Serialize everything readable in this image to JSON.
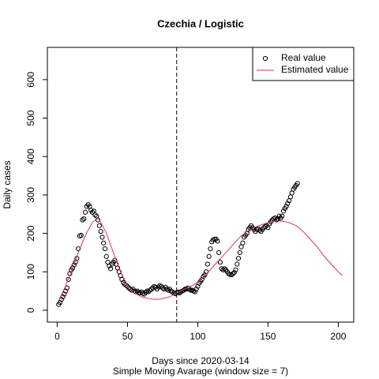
{
  "chart_data": {
    "type": "scatter_line",
    "title": "Czechia / Logistic",
    "x_label": "Days since 2020-03-14",
    "subtitle": "Simple Moving Avarage (window size = 7)",
    "y_label": "Daily cases",
    "xlim": [
      -7,
      211
    ],
    "ylim": [
      -31,
      684
    ],
    "xticks": [
      0,
      50,
      100,
      150,
      200
    ],
    "yticks": [
      0,
      100,
      200,
      300,
      400,
      500,
      600
    ],
    "vline": 85,
    "legend": "top-right",
    "series": [
      {
        "name": "Real value",
        "color": "#000000",
        "mode": "points",
        "x": [
          1,
          2,
          3,
          4,
          5,
          6,
          7,
          8,
          9,
          10,
          11,
          12,
          13,
          14,
          15,
          16,
          17,
          18,
          19,
          20,
          21,
          22,
          23,
          24,
          25,
          26,
          27,
          28,
          29,
          30,
          31,
          32,
          33,
          34,
          35,
          36,
          37,
          38,
          39,
          40,
          41,
          42,
          43,
          44,
          45,
          46,
          47,
          48,
          49,
          50,
          51,
          52,
          53,
          54,
          55,
          56,
          57,
          58,
          59,
          60,
          61,
          62,
          63,
          64,
          65,
          66,
          67,
          68,
          69,
          70,
          71,
          72,
          73,
          74,
          75,
          76,
          77,
          78,
          79,
          80,
          81,
          82,
          83,
          84,
          85,
          86,
          87,
          88,
          89,
          90,
          91,
          92,
          93,
          94,
          95,
          96,
          97,
          98,
          99,
          100,
          101,
          102,
          103,
          104,
          105,
          106,
          107,
          108,
          109,
          110,
          111,
          112,
          113,
          114,
          115,
          116,
          117,
          118,
          119,
          120,
          121,
          122,
          123,
          124,
          125,
          126,
          127,
          128,
          129,
          130,
          131,
          132,
          133,
          134,
          135,
          136,
          137,
          138,
          139,
          140,
          141,
          142,
          143,
          144,
          145,
          146,
          147,
          148,
          149,
          150,
          151,
          152,
          153,
          154,
          155,
          156,
          157,
          158,
          159,
          160,
          161,
          162,
          163,
          164,
          165,
          166,
          167,
          168,
          169,
          170,
          171
        ],
        "values": [
          15,
          20,
          28,
          35,
          42,
          50,
          58,
          80,
          95,
          105,
          110,
          118,
          125,
          135,
          160,
          193,
          195,
          235,
          238,
          255,
          270,
          275,
          270,
          260,
          255,
          258,
          248,
          245,
          235,
          220,
          205,
          190,
          175,
          160,
          140,
          125,
          115,
          108,
          120,
          125,
          130,
          120,
          110,
          100,
          90,
          80,
          72,
          68,
          65,
          62,
          58,
          55,
          52,
          55,
          50,
          48,
          50,
          46,
          45,
          48,
          44,
          42,
          47,
          50,
          48,
          52,
          55,
          58,
          62,
          60,
          55,
          60,
          64,
          62,
          58,
          55,
          60,
          55,
          52,
          55,
          50,
          48,
          45,
          43,
          46,
          47,
          45,
          48,
          50,
          52,
          55,
          55,
          58,
          55,
          52,
          52,
          50,
          48,
          55,
          62,
          70,
          75,
          80,
          88,
          92,
          100,
          120,
          140,
          160,
          178,
          183,
          185,
          185,
          180,
          150,
          125,
          108,
          105,
          108,
          105,
          100,
          95,
          93,
          92,
          95,
          98,
          105,
          120,
          135,
          150,
          165,
          175,
          190,
          195,
          200,
          210,
          215,
          220,
          215,
          210,
          205,
          210,
          212,
          208,
          205,
          210,
          215,
          218,
          220,
          215,
          225,
          230,
          235,
          238,
          240,
          235,
          238,
          245,
          240,
          245,
          258,
          265,
          270,
          278,
          285,
          295,
          305,
          315,
          320,
          325,
          330
        ]
      },
      {
        "name": "Estimated value",
        "color": "#d6336c",
        "mode": "line",
        "x": [
          1,
          5,
          10,
          15,
          20,
          25,
          28,
          30,
          35,
          40,
          45,
          50,
          55,
          60,
          65,
          70,
          75,
          80,
          85,
          90,
          95,
          100,
          105,
          110,
          115,
          120,
          125,
          130,
          135,
          140,
          145,
          150,
          155,
          160,
          165,
          170,
          175,
          180,
          185,
          190,
          195,
          200,
          203
        ],
        "values": [
          25,
          55,
          100,
          150,
          195,
          228,
          238,
          235,
          200,
          150,
          100,
          65,
          45,
          35,
          30,
          28,
          30,
          35,
          45,
          55,
          62,
          72,
          90,
          110,
          130,
          150,
          170,
          190,
          205,
          215,
          222,
          228,
          232,
          232,
          228,
          220,
          205,
          185,
          165,
          140,
          120,
          100,
          90
        ]
      }
    ]
  }
}
